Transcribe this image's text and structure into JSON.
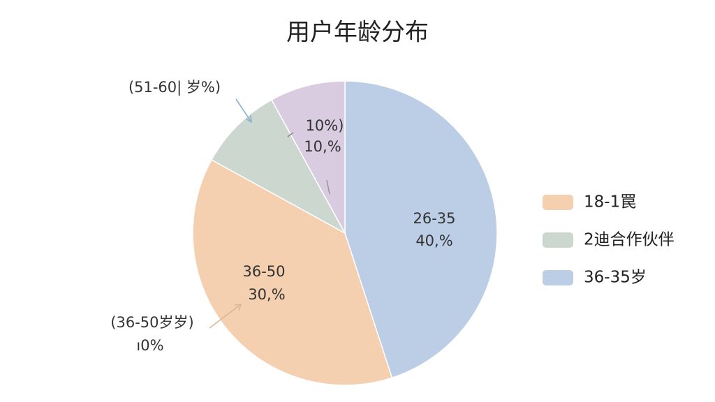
{
  "chart_data": {
    "type": "pie",
    "title": "用户年龄分布",
    "categories": [
      "36-35岁",
      "18-1罠",
      "2迪合作伙伴",
      null
    ],
    "values": [
      45,
      38,
      9,
      8
    ],
    "colors": [
      "#bccde6",
      "#f4cfb0",
      "#ccd8cf",
      "#d9cce0"
    ],
    "annotations": [
      "(51-60| 岁%)",
      "10%)",
      "10,%",
      "26-35",
      "40,%",
      "36-50",
      "30,%",
      "(36-50岁岁)",
      "ı0%"
    ]
  }
}
